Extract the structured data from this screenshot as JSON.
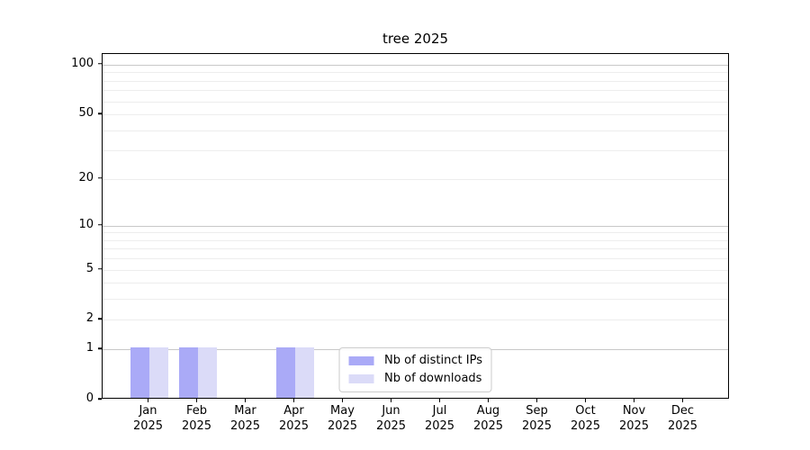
{
  "chart_data": {
    "type": "bar",
    "title": "tree 2025",
    "categories": [
      "Jan",
      "Feb",
      "Mar",
      "Apr",
      "May",
      "Jun",
      "Jul",
      "Aug",
      "Sep",
      "Oct",
      "Nov",
      "Dec"
    ],
    "category_year": "2025",
    "series": [
      {
        "name": "Nb of distinct IPs",
        "color": "#aaaaf7",
        "values": [
          1,
          1,
          0,
          1,
          0,
          0,
          0,
          0,
          0,
          0,
          0,
          0
        ]
      },
      {
        "name": "Nb of downloads",
        "color": "#dbdbf8",
        "values": [
          1,
          1,
          0,
          1,
          0,
          0,
          0,
          0,
          0,
          0,
          0,
          0
        ]
      }
    ],
    "yscale": "log1p",
    "ylim": [
      0,
      116
    ],
    "ytick_values": [
      0,
      1,
      2,
      5,
      10,
      20,
      50,
      100
    ],
    "gridline_values": [
      1,
      2,
      3,
      4,
      5,
      6,
      7,
      8,
      9,
      10,
      20,
      30,
      40,
      50,
      60,
      70,
      80,
      90,
      100
    ],
    "major_gridline_values": [
      1,
      10,
      100
    ],
    "grid": true,
    "legend": {
      "position": "lower center",
      "entries": [
        "Nb of distinct IPs",
        "Nb of downloads"
      ]
    },
    "xlabel": "",
    "ylabel": "",
    "colors": {
      "axis": "#000000",
      "major_gridline": "#c8c8c8",
      "minor_gridline": "#ededed",
      "background": "#ffffff",
      "text": "#000000"
    }
  }
}
